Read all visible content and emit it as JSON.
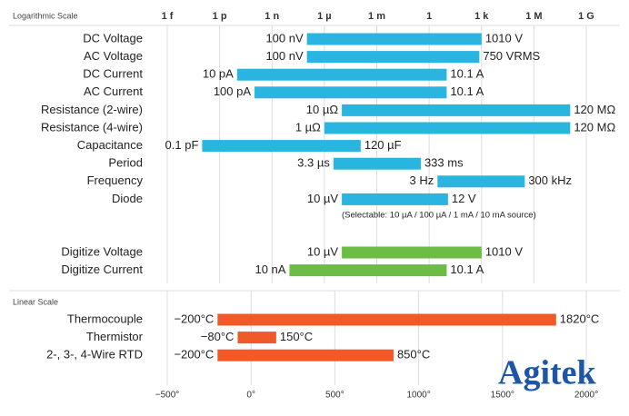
{
  "chart_data": [
    {
      "type": "range-bar",
      "title": "Logarithmic Scale",
      "log_scale": true,
      "grid": true,
      "xlim": [
        1e-15,
        1000000000.0
      ],
      "xticks": [
        {
          "value": 1e-15,
          "label": "1 f"
        },
        {
          "value": 1e-12,
          "label": "1 p"
        },
        {
          "value": 1e-09,
          "label": "1 n"
        },
        {
          "value": 1e-06,
          "label": "1 µ"
        },
        {
          "value": 0.001,
          "label": "1 m"
        },
        1,
        {
          "value": 1000,
          "label": "1 k"
        },
        {
          "value": 1000000,
          "label": "1 M"
        },
        {
          "value": 1000000000,
          "label": "1 G"
        }
      ],
      "series": [
        {
          "color": "#29b5e0",
          "categories": [
            "DC Voltage",
            "AC Voltage",
            "DC Current",
            "AC Current",
            "Resistance (2-wire)",
            "Resistance (4-wire)",
            "Capacitance",
            "Period",
            "Frequency",
            "Diode"
          ],
          "low": [
            1e-07,
            1e-07,
            1e-11,
            1e-10,
            1e-05,
            1e-06,
            1e-13,
            3.3e-06,
            3,
            1e-05
          ],
          "high": [
            1010,
            750,
            10.1,
            10.1,
            120000000,
            120000000,
            0.00012,
            0.333,
            300000,
            12
          ],
          "low_labels": [
            "100 nV",
            "100 nV",
            "10 pA",
            "100 pA",
            "10 µΩ",
            "1 µΩ",
            "0.1 pF",
            "3.3 µs",
            "3 Hz",
            "10 µV"
          ],
          "high_labels": [
            "1010 V",
            "750 VRMS",
            "10.1 A",
            "10.1 A",
            "120 MΩ",
            "120 MΩ",
            "120 µF",
            "333 ms",
            "300 kHz",
            "12 V"
          ]
        },
        {
          "color": "#6cbd45",
          "categories": [
            "Digitize Voltage",
            "Digitize Current"
          ],
          "low": [
            1e-05,
            1e-08
          ],
          "high": [
            1010,
            10.1
          ],
          "low_labels": [
            "10 µV",
            "10 nA"
          ],
          "high_labels": [
            "1010 V",
            "10.1 A"
          ]
        }
      ],
      "annotation": "(Selectable: 10 µA / 100 µA / 1 mA / 10 mA source)"
    },
    {
      "type": "range-bar",
      "title": "Linear Scale",
      "log_scale": false,
      "grid": true,
      "xlim": [
        -500,
        2000
      ],
      "xticks": [
        {
          "value": -500,
          "label": "−500°"
        },
        {
          "value": 0,
          "label": "0°"
        },
        {
          "value": 500,
          "label": "500°"
        },
        {
          "value": 1000,
          "label": "1000°"
        },
        {
          "value": 1500,
          "label": "1500°"
        },
        {
          "value": 2000,
          "label": "2000°"
        }
      ],
      "series": [
        {
          "color": "#ef5a28",
          "categories": [
            "Thermocouple",
            "Thermistor",
            "2-, 3-, 4-Wire RTD"
          ],
          "low": [
            -200,
            -80,
            -200
          ],
          "high": [
            1820,
            150,
            850
          ],
          "low_labels": [
            "−200°C",
            "−80°C",
            "−200°C"
          ],
          "high_labels": [
            "1820°C",
            "150°C",
            "850°C"
          ]
        }
      ]
    }
  ],
  "watermark": "Agitek"
}
